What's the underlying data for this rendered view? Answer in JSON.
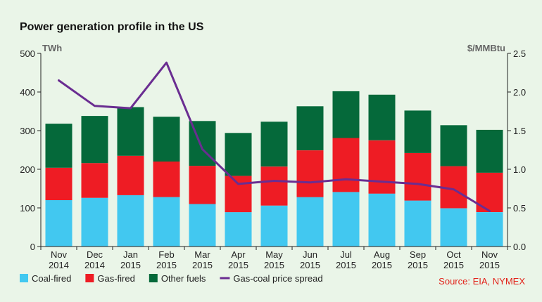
{
  "chart_data": {
    "type": "bar",
    "stacked": true,
    "title": "Power generation profile in the US",
    "left_axis_unit": "TWh",
    "right_axis_unit": "$/MMBtu",
    "categories": [
      [
        "Nov",
        "2014"
      ],
      [
        "Dec",
        "2014"
      ],
      [
        "Jan",
        "2015"
      ],
      [
        "Feb",
        "2015"
      ],
      [
        "Mar",
        "2015"
      ],
      [
        "Apr",
        "2015"
      ],
      [
        "May",
        "2015"
      ],
      [
        "Jun",
        "2015"
      ],
      [
        "Jul",
        "2015"
      ],
      [
        "Aug",
        "2015"
      ],
      [
        "Sep",
        "2015"
      ],
      [
        "Oct",
        "2015"
      ],
      [
        "Nov",
        "2015"
      ]
    ],
    "series": [
      {
        "name": "Coal-fired",
        "color": "#42c8f0",
        "values": [
          120,
          126,
          133,
          128,
          110,
          89,
          106,
          128,
          141,
          137,
          119,
          99,
          89
        ]
      },
      {
        "name": "Gas-fired",
        "color": "#ee1c24",
        "values": [
          84,
          90,
          102,
          92,
          99,
          94,
          101,
          121,
          140,
          138,
          123,
          109,
          102
        ]
      },
      {
        "name": "Other fuels",
        "color": "#05693a",
        "values": [
          114,
          122,
          126,
          116,
          116,
          111,
          116,
          114,
          121,
          118,
          110,
          106,
          111
        ]
      }
    ],
    "line_series": {
      "name": "Gas-coal price spread",
      "color": "#6a2d91",
      "axis": "right",
      "values": [
        2.15,
        1.82,
        1.79,
        2.38,
        1.26,
        0.81,
        0.85,
        0.83,
        0.87,
        0.84,
        0.81,
        0.74,
        0.46
      ]
    },
    "ylim": [
      0,
      500
    ],
    "yticks": [
      0,
      100,
      200,
      300,
      400,
      500
    ],
    "y2lim": [
      0,
      2.5
    ],
    "y2ticks": [
      "0.0",
      "0.5",
      "1.0",
      "1.5",
      "2.0",
      "2.5"
    ],
    "grid": false,
    "legend_position": "bottom"
  },
  "source_note": "Source: EIA, NYMEX"
}
